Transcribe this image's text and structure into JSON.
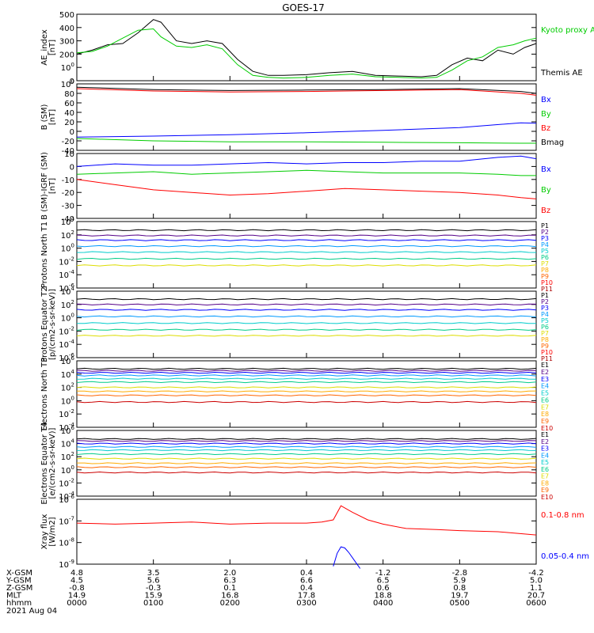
{
  "title": "GOES-17",
  "xaxis": {
    "ticks": [
      "0000",
      "0100",
      "0200",
      "0300",
      "0400",
      "0500",
      "0600"
    ],
    "rows": [
      {
        "label": "X-GSM",
        "values": [
          "4.8",
          "3.5",
          "2.0",
          "0.4",
          "-1.2",
          "-2.8",
          "-4.2"
        ]
      },
      {
        "label": "Y-GSM",
        "values": [
          "4.5",
          "5.6",
          "6.3",
          "6.6",
          "6.5",
          "5.9",
          "5.0"
        ]
      },
      {
        "label": "Z-GSM",
        "values": [
          "-0.8",
          "-0.3",
          "0.1",
          "0.4",
          "0.6",
          "0.8",
          "1.1"
        ]
      },
      {
        "label": "MLT",
        "values": [
          "14.9",
          "15.9",
          "16.8",
          "17.8",
          "18.8",
          "19.7",
          "20.7"
        ]
      },
      {
        "label": "hhmm",
        "values": [
          "0000",
          "0100",
          "0200",
          "0300",
          "0400",
          "0500",
          "0600"
        ]
      }
    ],
    "date": "2021 Aug 04"
  },
  "colors": {
    "black": "#000000",
    "blue": "#0000ff",
    "green": "#00cc00",
    "red": "#ff0000",
    "p1": "#000000",
    "p2": "#550088",
    "p3": "#0000ff",
    "p4": "#0099ff",
    "p5": "#00cccc",
    "p6": "#00cc88",
    "p7": "#dddd00",
    "p8": "#ffaa00",
    "p9": "#ff6600",
    "p10": "#ff0000",
    "p11": "#aa0000"
  },
  "chart_data": [
    {
      "type": "line",
      "ylabel": "AE_index [nT]",
      "ylim": [
        0,
        500
      ],
      "y_ticks": [
        "0",
        "100",
        "200",
        "300",
        "400",
        "500"
      ],
      "x_hours": [
        0,
        0.2,
        0.4,
        0.6,
        0.8,
        1.0,
        1.1,
        1.3,
        1.5,
        1.7,
        1.9,
        2.1,
        2.3,
        2.5,
        2.7,
        3.0,
        3.3,
        3.6,
        3.9,
        4.2,
        4.5,
        4.7,
        4.9,
        5.1,
        5.3,
        5.5,
        5.7,
        5.85,
        6.0
      ],
      "series": [
        {
          "name": "Themis AE",
          "color": "#000000",
          "values": [
            200,
            230,
            270,
            280,
            360,
            460,
            440,
            300,
            280,
            300,
            280,
            160,
            70,
            40,
            40,
            45,
            60,
            70,
            40,
            35,
            30,
            40,
            120,
            170,
            150,
            230,
            200,
            250,
            280
          ]
        },
        {
          "name": "Kyoto proxy AE",
          "color": "#00cc00",
          "values": [
            210,
            220,
            260,
            320,
            380,
            390,
            330,
            260,
            250,
            270,
            240,
            120,
            40,
            25,
            20,
            25,
            40,
            50,
            30,
            25,
            20,
            25,
            80,
            150,
            180,
            250,
            270,
            300,
            320
          ]
        }
      ],
      "legend": [
        "Kyoto proxy AE",
        "Themis AE"
      ]
    },
    {
      "type": "line",
      "ylabel": "B (SM) [nT]",
      "ylim": [
        -40,
        100
      ],
      "y_ticks": [
        "-40",
        "-20",
        "0",
        "20",
        "40",
        "60",
        "80",
        "100"
      ],
      "x_hours": [
        0,
        1,
        2,
        3,
        4,
        5,
        5.8,
        6.0
      ],
      "series": [
        {
          "name": "Bx",
          "color": "#0000ff",
          "values": [
            -12,
            -10,
            -7,
            -3,
            2,
            8,
            18,
            17
          ]
        },
        {
          "name": "By",
          "color": "#00cc00",
          "values": [
            -15,
            -20,
            -22,
            -22,
            -23,
            -24,
            -25,
            -25
          ]
        },
        {
          "name": "Bz",
          "color": "#ff0000",
          "values": [
            90,
            85,
            83,
            84,
            86,
            88,
            80,
            76
          ]
        },
        {
          "name": "Bmag",
          "color": "#000000",
          "values": [
            93,
            88,
            86,
            87,
            88,
            90,
            84,
            80
          ]
        }
      ],
      "legend": [
        "Bx",
        "By",
        "Bz",
        "Bmag"
      ]
    },
    {
      "type": "line",
      "ylabel": "B (SM)-IGRF (SM) [nT]",
      "ylim": [
        -40,
        10
      ],
      "y_ticks": [
        "-40",
        "-30",
        "-20",
        "-10",
        "0",
        "10"
      ],
      "x_hours": [
        0,
        0.5,
        1.0,
        1.5,
        2.0,
        2.5,
        3.0,
        3.5,
        4.0,
        4.5,
        5.0,
        5.5,
        5.8,
        6.0
      ],
      "series": [
        {
          "name": "Bx",
          "color": "#0000ff",
          "values": [
            0,
            2,
            1,
            1,
            2,
            3,
            2,
            3,
            3,
            4,
            4,
            7,
            8,
            6
          ]
        },
        {
          "name": "By",
          "color": "#00cc00",
          "values": [
            -6,
            -5,
            -4,
            -6,
            -5,
            -4,
            -3,
            -4,
            -5,
            -5,
            -5,
            -6,
            -7,
            -7
          ]
        },
        {
          "name": "Bz",
          "color": "#ff0000",
          "values": [
            -10,
            -14,
            -18,
            -20,
            -22,
            -21,
            -19,
            -17,
            -18,
            -19,
            -20,
            -22,
            -24,
            -25
          ]
        }
      ],
      "legend": [
        "Bx",
        "By",
        "Bz"
      ]
    },
    {
      "type": "line",
      "scale": "log",
      "ylabel": "Protons North T1",
      "ylim": [
        -6,
        4
      ],
      "y_ticks": [
        "10-6",
        "10-4",
        "10-2",
        "100",
        "102",
        "104"
      ],
      "series": [
        {
          "name": "P1",
          "color": "#000000",
          "level": 2.7
        },
        {
          "name": "P2",
          "color": "#550088",
          "level": 1.9
        },
        {
          "name": "P3",
          "color": "#0000ff",
          "level": 1.2
        },
        {
          "name": "P4",
          "color": "#0099ff",
          "level": 0.3
        },
        {
          "name": "P5",
          "color": "#00cccc",
          "level": -0.6
        },
        {
          "name": "P6",
          "color": "#00cc88",
          "level": -1.6
        },
        {
          "name": "P7",
          "color": "#dddd00",
          "level": -2.6
        },
        {
          "name": "P8",
          "color": "#ffaa00",
          "level": -9
        },
        {
          "name": "P9",
          "color": "#ff6600",
          "level": -9
        },
        {
          "name": "P10",
          "color": "#ff0000",
          "level": -9
        },
        {
          "name": "P11",
          "color": "#aa0000",
          "level": -9
        }
      ],
      "legend": [
        "P1",
        "P2",
        "P3",
        "P4",
        "P5",
        "P6",
        "P7",
        "P8",
        "P9",
        "P10",
        "P11"
      ]
    },
    {
      "type": "line",
      "scale": "log",
      "ylabel": "Protons Equator T2 [p/(cm2-s-sr-keV)]",
      "ylim": [
        -6,
        4
      ],
      "y_ticks": [
        "10-6",
        "10-4",
        "10-2",
        "100",
        "102",
        "104"
      ],
      "series": [
        {
          "name": "P1",
          "color": "#000000",
          "level": 2.8
        },
        {
          "name": "P2",
          "color": "#550088",
          "level": 2.0
        },
        {
          "name": "P3",
          "color": "#0000ff",
          "level": 1.2
        },
        {
          "name": "P4",
          "color": "#0099ff",
          "level": 0.2
        },
        {
          "name": "P5",
          "color": "#00cccc",
          "level": -0.8
        },
        {
          "name": "P6",
          "color": "#00cc88",
          "level": -1.8
        },
        {
          "name": "P7",
          "color": "#dddd00",
          "level": -2.7
        },
        {
          "name": "P8",
          "color": "#ffaa00",
          "level": -9
        },
        {
          "name": "P9",
          "color": "#ff6600",
          "level": -9
        },
        {
          "name": "P10",
          "color": "#ff0000",
          "level": -9
        },
        {
          "name": "P11",
          "color": "#aa0000",
          "level": -9
        }
      ],
      "legend": [
        "P1",
        "P2",
        "P3",
        "P4",
        "P5",
        "P6",
        "P7",
        "P8",
        "P9",
        "P10",
        "P11"
      ]
    },
    {
      "type": "line",
      "scale": "log",
      "ylabel": "Electrons North T3",
      "ylim": [
        -4,
        6
      ],
      "y_ticks": [
        "10-4",
        "10-2",
        "100",
        "102",
        "104",
        "106"
      ],
      "series": [
        {
          "name": "E1",
          "color": "#000000",
          "level": 4.8
        },
        {
          "name": "E2",
          "color": "#550088",
          "level": 4.5
        },
        {
          "name": "E3",
          "color": "#0000ff",
          "level": 4.2
        },
        {
          "name": "E4",
          "color": "#0099ff",
          "level": 3.8
        },
        {
          "name": "E5",
          "color": "#00cccc",
          "level": 3.3
        },
        {
          "name": "E6",
          "color": "#00cc88",
          "level": 2.8
        },
        {
          "name": "E7",
          "color": "#dddd00",
          "level": 2.0
        },
        {
          "name": "E8",
          "color": "#ffaa00",
          "level": 1.4
        },
        {
          "name": "E9",
          "color": "#ff6600",
          "level": 0.8
        },
        {
          "name": "E10",
          "color": "#cc0000",
          "level": -0.2
        }
      ],
      "legend": [
        "E1",
        "E2",
        "E3",
        "E4",
        "E5",
        "E6",
        "E7",
        "E8",
        "E9",
        "E10"
      ]
    },
    {
      "type": "line",
      "scale": "log",
      "ylabel": "Electrons Equator T4 [e/(cm2-s-sr-keV)]",
      "ylim": [
        -4,
        6
      ],
      "y_ticks": [
        "10-4",
        "10-2",
        "100",
        "102",
        "104",
        "106"
      ],
      "series": [
        {
          "name": "E1",
          "color": "#000000",
          "level": 4.7
        },
        {
          "name": "E2",
          "color": "#550088",
          "level": 4.4
        },
        {
          "name": "E3",
          "color": "#0000ff",
          "level": 4.0
        },
        {
          "name": "E4",
          "color": "#0099ff",
          "level": 3.5
        },
        {
          "name": "E5",
          "color": "#00cccc",
          "level": 3.0
        },
        {
          "name": "E6",
          "color": "#00cc88",
          "level": 2.4
        },
        {
          "name": "E7",
          "color": "#dddd00",
          "level": 1.7
        },
        {
          "name": "E8",
          "color": "#ffaa00",
          "level": 1.0
        },
        {
          "name": "E9",
          "color": "#ff6600",
          "level": 0.4
        },
        {
          "name": "E10",
          "color": "#cc0000",
          "level": -0.4
        }
      ],
      "legend": [
        "E1",
        "E2",
        "E3",
        "E4",
        "E5",
        "E6",
        "E7",
        "E8",
        "E9",
        "E10"
      ]
    },
    {
      "type": "line",
      "scale": "log",
      "ylabel": "Xray flux [W/m2]",
      "ylim": [
        -9,
        -6
      ],
      "y_ticks": [
        "10-9",
        "10-8",
        "10-7",
        "10-6"
      ],
      "x_hours": [
        0,
        0.5,
        1.0,
        1.5,
        2.0,
        2.5,
        3.0,
        3.2,
        3.35,
        3.45,
        3.6,
        3.8,
        4.0,
        4.3,
        4.7,
        5.0,
        5.5,
        6.0
      ],
      "series": [
        {
          "name": "0.1-0.8 nm",
          "color": "#ff0000",
          "values": [
            -7.1,
            -7.15,
            -7.1,
            -7.05,
            -7.15,
            -7.1,
            -7.1,
            -7.05,
            -6.95,
            -6.3,
            -6.6,
            -6.95,
            -7.15,
            -7.35,
            -7.4,
            -7.45,
            -7.5,
            -7.65
          ]
        },
        {
          "name": "0.05-0.4 nm",
          "color": "#0000ff",
          "x_hours": [
            3.35,
            3.4,
            3.45,
            3.5,
            3.55,
            3.6,
            3.65,
            3.7
          ],
          "values": [
            -9.1,
            -8.5,
            -8.2,
            -8.25,
            -8.45,
            -8.7,
            -8.95,
            -9.2
          ]
        }
      ],
      "legend": [
        "0.1-0.8 nm",
        "0.05-0.4 nm"
      ]
    }
  ]
}
